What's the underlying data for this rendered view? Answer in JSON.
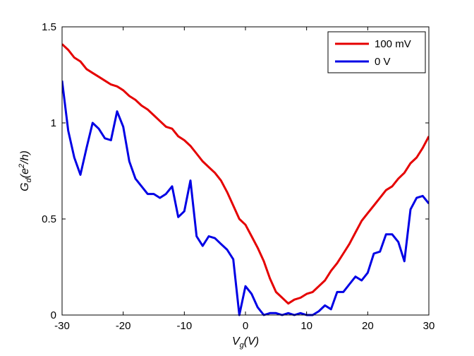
{
  "chart_data": {
    "type": "line",
    "title": "",
    "xlabel": {
      "base": "V",
      "sub": "g",
      "suffix": "(V)"
    },
    "ylabel": {
      "base": "G",
      "sub": "d",
      "suffix": "(e",
      "sup": "2",
      "tail": "/h)"
    },
    "xlim": [
      -30,
      30
    ],
    "ylim": [
      0,
      1.5
    ],
    "xticks": [
      -30,
      -20,
      -10,
      0,
      10,
      20,
      30
    ],
    "xtick_labels": [
      "-30",
      "-20",
      "-10",
      "0",
      "10",
      "20",
      "30"
    ],
    "yticks": [
      0,
      0.5,
      1,
      1.5
    ],
    "ytick_labels": [
      "0",
      "0.5",
      "1",
      "1.5"
    ],
    "grid": false,
    "legend_position": "top-right",
    "series": [
      {
        "name": "100 mV",
        "color": "#e50000",
        "x": [
          -30,
          -29,
          -28,
          -27,
          -26,
          -25,
          -24,
          -23,
          -22,
          -21,
          -20,
          -19,
          -18,
          -17,
          -16,
          -15,
          -14,
          -13,
          -12,
          -11,
          -10,
          -9,
          -8,
          -7,
          -6,
          -5,
          -4,
          -3,
          -2,
          -1,
          0,
          1,
          2,
          3,
          4,
          5,
          6,
          7,
          8,
          9,
          10,
          11,
          12,
          13,
          14,
          15,
          16,
          17,
          18,
          19,
          20,
          21,
          22,
          23,
          24,
          25,
          26,
          27,
          28,
          29,
          30
        ],
        "y": [
          1.41,
          1.38,
          1.34,
          1.32,
          1.28,
          1.26,
          1.24,
          1.22,
          1.2,
          1.19,
          1.17,
          1.14,
          1.12,
          1.09,
          1.07,
          1.04,
          1.01,
          0.98,
          0.97,
          0.93,
          0.91,
          0.88,
          0.84,
          0.8,
          0.77,
          0.74,
          0.7,
          0.64,
          0.57,
          0.5,
          0.47,
          0.41,
          0.35,
          0.28,
          0.19,
          0.12,
          0.09,
          0.06,
          0.08,
          0.09,
          0.11,
          0.12,
          0.15,
          0.18,
          0.23,
          0.27,
          0.32,
          0.37,
          0.43,
          0.49,
          0.53,
          0.57,
          0.61,
          0.65,
          0.67,
          0.71,
          0.74,
          0.79,
          0.82,
          0.87,
          0.93
        ]
      },
      {
        "name": "0 V",
        "color": "#0000e5",
        "x": [
          -30,
          -29,
          -28,
          -27,
          -26,
          -25,
          -24,
          -23,
          -22,
          -21,
          -20,
          -19,
          -18,
          -17,
          -16,
          -15,
          -14,
          -13,
          -12,
          -11,
          -10,
          -9,
          -8,
          -7,
          -6,
          -5,
          -4,
          -3,
          -2,
          -1,
          0,
          1,
          2,
          3,
          4,
          5,
          6,
          7,
          8,
          9,
          10,
          11,
          12,
          13,
          14,
          15,
          16,
          17,
          18,
          19,
          20,
          21,
          22,
          23,
          24,
          25,
          26,
          27,
          28,
          29,
          30
        ],
        "y": [
          1.22,
          0.96,
          0.82,
          0.73,
          0.87,
          1.0,
          0.97,
          0.92,
          0.91,
          1.06,
          0.98,
          0.8,
          0.71,
          0.67,
          0.63,
          0.63,
          0.61,
          0.63,
          0.67,
          0.51,
          0.54,
          0.7,
          0.41,
          0.36,
          0.41,
          0.4,
          0.37,
          0.34,
          0.29,
          0.0,
          0.15,
          0.11,
          0.04,
          0.0,
          0.01,
          0.01,
          0.0,
          0.01,
          0.0,
          0.01,
          0.0,
          0.0,
          0.02,
          0.05,
          0.03,
          0.12,
          0.12,
          0.16,
          0.2,
          0.18,
          0.22,
          0.32,
          0.33,
          0.42,
          0.42,
          0.38,
          0.28,
          0.55,
          0.61,
          0.62,
          0.58
        ]
      }
    ]
  }
}
